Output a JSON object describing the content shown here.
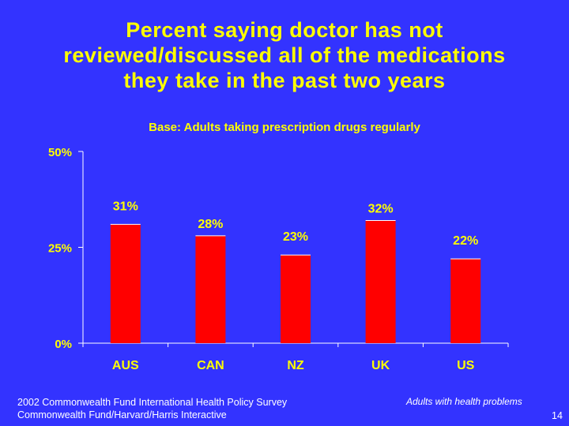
{
  "title_lines": [
    "Percent saying doctor has not",
    "reviewed/discussed all of the medications",
    "they take in the past two years"
  ],
  "subtitle": "Base: Adults taking prescription drugs regularly",
  "footer": {
    "source_line1": "2002 Commonwealth Fund International Health Policy Survey",
    "source_line2": "Commonwealth Fund/Harvard/Harris Interactive",
    "note": "Adults with health problems",
    "page_number": "14"
  },
  "colors": {
    "background": "#3333ff",
    "text": "#ffff00",
    "bar": "#ff0000",
    "axis": "#ffffff"
  },
  "chart_data": {
    "type": "bar",
    "categories": [
      "AUS",
      "CAN",
      "NZ",
      "UK",
      "US"
    ],
    "values": [
      31,
      28,
      23,
      32,
      22
    ],
    "data_labels": [
      "31%",
      "28%",
      "23%",
      "32%",
      "22%"
    ],
    "ylim": [
      0,
      50
    ],
    "yticks": [
      0,
      25,
      50
    ],
    "ytick_labels": [
      "0%",
      "25%",
      "50%"
    ],
    "grid": false,
    "legend": "none"
  }
}
